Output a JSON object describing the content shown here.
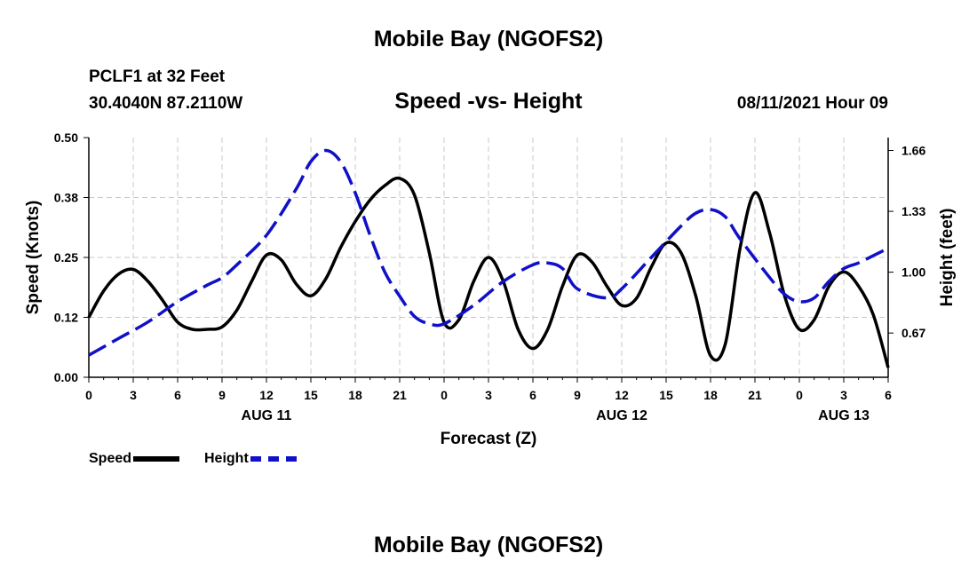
{
  "header": {
    "title_top": "Mobile Bay (NGOFS2)",
    "station": "PCLF1 at 32 Feet",
    "coords": "30.4040N  87.2110W",
    "timestamp": "08/11/2021 Hour 09",
    "title_bottom": "Mobile Bay (NGOFS2)"
  },
  "legend": {
    "speed_label": "Speed",
    "height_label": "Height"
  },
  "chart_data": {
    "type": "line",
    "title": "Speed -vs- Height",
    "xlabel": "Forecast (Z)",
    "ylabel_left": "Speed (Knots)",
    "ylabel_right": "Height (feet)",
    "x_hours": [
      0,
      54
    ],
    "x_ticks": [
      {
        "hour": 0,
        "label": "0"
      },
      {
        "hour": 3,
        "label": "3"
      },
      {
        "hour": 6,
        "label": "6"
      },
      {
        "hour": 9,
        "label": "9"
      },
      {
        "hour": 12,
        "label": "12"
      },
      {
        "hour": 15,
        "label": "15"
      },
      {
        "hour": 18,
        "label": "18"
      },
      {
        "hour": 21,
        "label": "21"
      },
      {
        "hour": 24,
        "label": "0"
      },
      {
        "hour": 27,
        "label": "3"
      },
      {
        "hour": 30,
        "label": "6"
      },
      {
        "hour": 33,
        "label": "9"
      },
      {
        "hour": 36,
        "label": "12"
      },
      {
        "hour": 39,
        "label": "15"
      },
      {
        "hour": 42,
        "label": "18"
      },
      {
        "hour": 45,
        "label": "21"
      },
      {
        "hour": 48,
        "label": "0"
      },
      {
        "hour": 51,
        "label": "3"
      },
      {
        "hour": 54,
        "label": "6"
      }
    ],
    "date_labels": [
      {
        "hour": 12,
        "label": "AUG 11"
      },
      {
        "hour": 36,
        "label": "AUG 12"
      },
      {
        "hour": 51,
        "label": "AUG 13"
      }
    ],
    "ylim_left": [
      0,
      0.5
    ],
    "yticks_left": [
      {
        "value": 0,
        "label": "0.00"
      },
      {
        "value": 0.125,
        "label": "0.12"
      },
      {
        "value": 0.25,
        "label": "0.25"
      },
      {
        "value": 0.375,
        "label": "0.38"
      },
      {
        "value": 0.5,
        "label": "0.50"
      }
    ],
    "ylim_right": [
      0.43,
      1.73
    ],
    "yticks_right": [
      {
        "value": 0.67,
        "label": "0.67"
      },
      {
        "value": 1.0,
        "label": "1.00"
      },
      {
        "value": 1.33,
        "label": "1.33"
      },
      {
        "value": 1.66,
        "label": "1.66"
      }
    ],
    "grid": true,
    "series": [
      {
        "name": "Speed",
        "axis": "left",
        "color": "#000000",
        "style": "solid",
        "points": [
          [
            0,
            0.125
          ],
          [
            1,
            0.18
          ],
          [
            2,
            0.215
          ],
          [
            3,
            0.225
          ],
          [
            4,
            0.2
          ],
          [
            5,
            0.16
          ],
          [
            6,
            0.115
          ],
          [
            7,
            0.1
          ],
          [
            8,
            0.1
          ],
          [
            9,
            0.105
          ],
          [
            10,
            0.14
          ],
          [
            11,
            0.2
          ],
          [
            12,
            0.255
          ],
          [
            13,
            0.245
          ],
          [
            14,
            0.195
          ],
          [
            15,
            0.17
          ],
          [
            16,
            0.205
          ],
          [
            17,
            0.27
          ],
          [
            18,
            0.325
          ],
          [
            19,
            0.37
          ],
          [
            20,
            0.4
          ],
          [
            21,
            0.415
          ],
          [
            22,
            0.38
          ],
          [
            23,
            0.26
          ],
          [
            24,
            0.115
          ],
          [
            25,
            0.12
          ],
          [
            26,
            0.2
          ],
          [
            27,
            0.25
          ],
          [
            28,
            0.2
          ],
          [
            29,
            0.1
          ],
          [
            30,
            0.06
          ],
          [
            31,
            0.1
          ],
          [
            32,
            0.19
          ],
          [
            33,
            0.255
          ],
          [
            34,
            0.24
          ],
          [
            35,
            0.19
          ],
          [
            36,
            0.15
          ],
          [
            37,
            0.165
          ],
          [
            38,
            0.23
          ],
          [
            39,
            0.28
          ],
          [
            40,
            0.26
          ],
          [
            41,
            0.17
          ],
          [
            42,
            0.045
          ],
          [
            43,
            0.07
          ],
          [
            44,
            0.27
          ],
          [
            45,
            0.385
          ],
          [
            46,
            0.3
          ],
          [
            47,
            0.17
          ],
          [
            48,
            0.1
          ],
          [
            49,
            0.12
          ],
          [
            50,
            0.19
          ],
          [
            51,
            0.22
          ],
          [
            52,
            0.19
          ],
          [
            53,
            0.13
          ],
          [
            54,
            0.02
          ]
        ]
      },
      {
        "name": "Height",
        "axis": "right",
        "color": "#1010c8",
        "style": "dashed",
        "points": [
          [
            0,
            0.55
          ],
          [
            2,
            0.64
          ],
          [
            4,
            0.73
          ],
          [
            6,
            0.84
          ],
          [
            8,
            0.93
          ],
          [
            9,
            0.97
          ],
          [
            10,
            1.04
          ],
          [
            12,
            1.2
          ],
          [
            14,
            1.45
          ],
          [
            15,
            1.6
          ],
          [
            16,
            1.66
          ],
          [
            17,
            1.6
          ],
          [
            18,
            1.43
          ],
          [
            19,
            1.2
          ],
          [
            20,
            1.0
          ],
          [
            21,
            0.87
          ],
          [
            22,
            0.76
          ],
          [
            23,
            0.72
          ],
          [
            24,
            0.72
          ],
          [
            26,
            0.82
          ],
          [
            28,
            0.95
          ],
          [
            30,
            1.04
          ],
          [
            31,
            1.05
          ],
          [
            32,
            1.02
          ],
          [
            33,
            0.91
          ],
          [
            35,
            0.86
          ],
          [
            36,
            0.91
          ],
          [
            38,
            1.08
          ],
          [
            40,
            1.25
          ],
          [
            41,
            1.32
          ],
          [
            42,
            1.34
          ],
          [
            43,
            1.3
          ],
          [
            44,
            1.18
          ],
          [
            46,
            0.97
          ],
          [
            47,
            0.88
          ],
          [
            48,
            0.84
          ],
          [
            49,
            0.86
          ],
          [
            50,
            0.95
          ],
          [
            51,
            1.02
          ],
          [
            52,
            1.05
          ],
          [
            53,
            1.09
          ],
          [
            54,
            1.13
          ]
        ]
      }
    ]
  }
}
